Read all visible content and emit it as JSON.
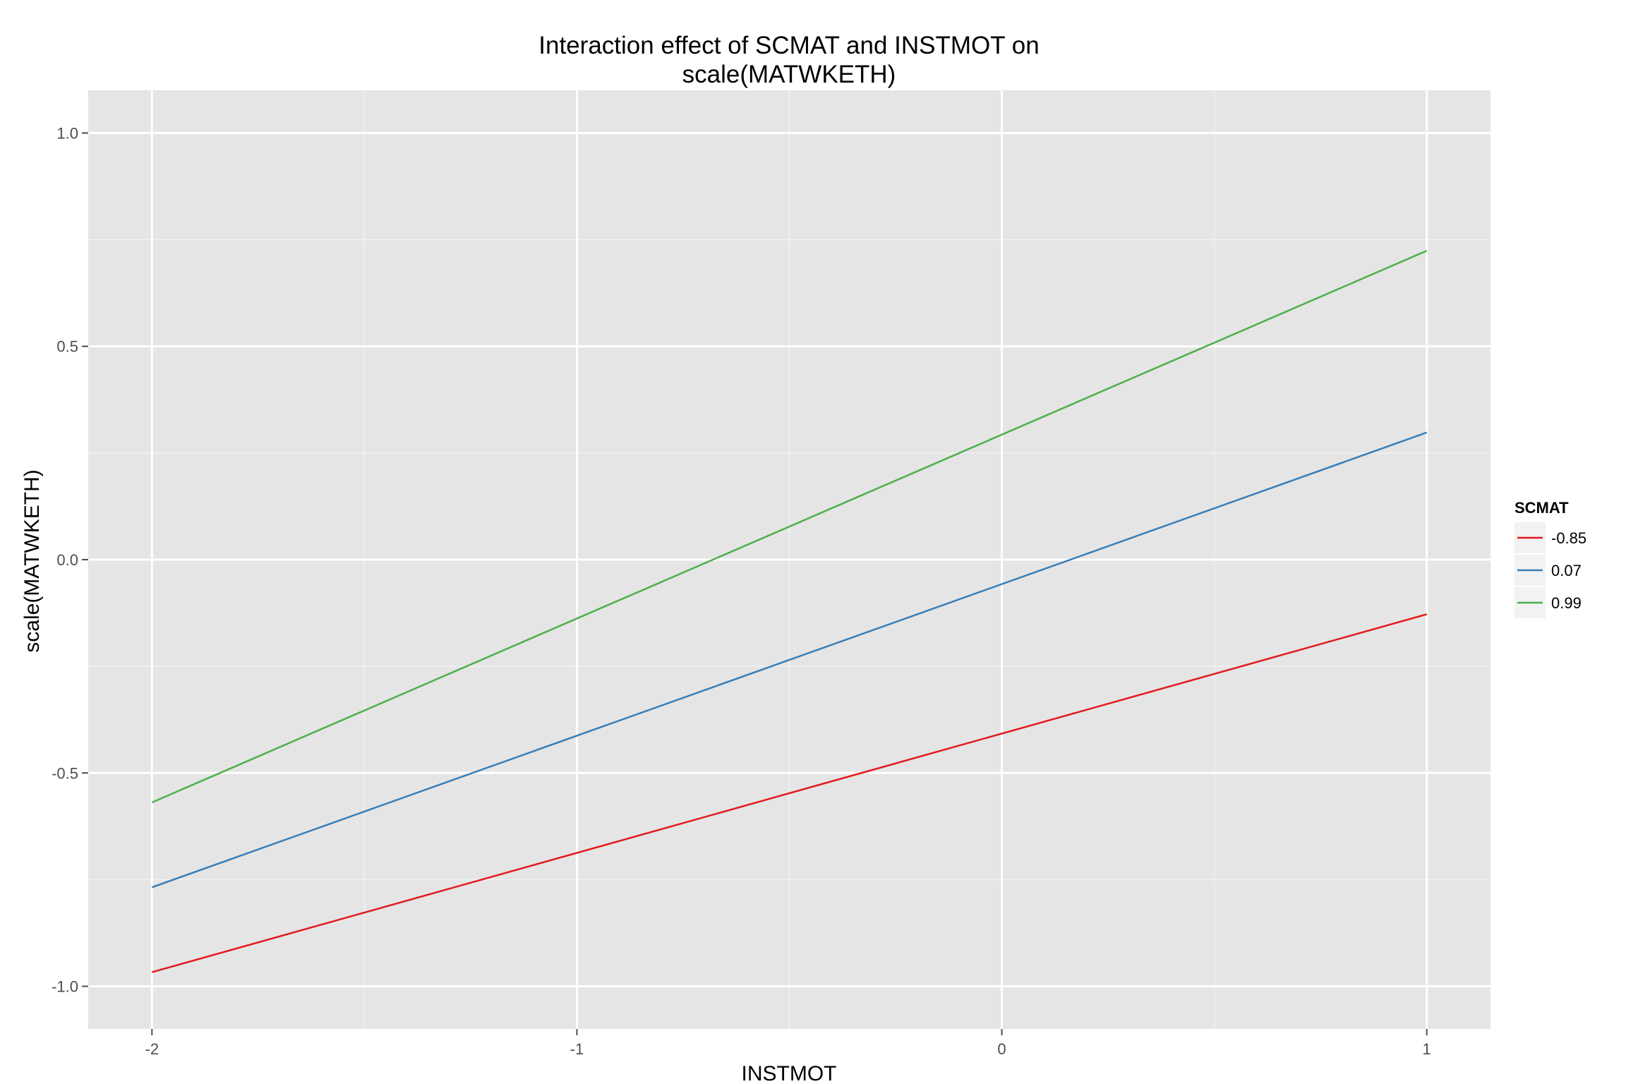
{
  "chart_data": {
    "type": "line",
    "title": "Interaction effect of SCMAT and INSTMOT on",
    "title_line2": "scale(MATWKETH)",
    "xlabel": "INSTMOT",
    "ylabel": "scale(MATWKETH)",
    "xlim": [
      -2.15,
      1.15
    ],
    "ylim": [
      -1.1,
      1.1
    ],
    "xticks": [
      "-2",
      "-1",
      "0",
      "1"
    ],
    "yticks": [
      "-1.0",
      "-0.5",
      "0.0",
      "0.5",
      "1.0"
    ],
    "xtick_values": [
      -2,
      -1,
      0,
      1
    ],
    "ytick_values": [
      -1.0,
      -0.5,
      0.0,
      0.5,
      1.0
    ],
    "grid": true,
    "legend": {
      "title": "SCMAT",
      "position": "right"
    },
    "x": [
      -2,
      1
    ],
    "series": [
      {
        "name": "-0.85",
        "color": "#E41A1C",
        "values": [
          -0.967,
          -0.128
        ]
      },
      {
        "name": "0.07",
        "color": "#377EB8",
        "values": [
          -0.768,
          0.298
        ]
      },
      {
        "name": "0.99",
        "color": "#4DAF4A",
        "values": [
          -0.569,
          0.724
        ]
      }
    ]
  },
  "colors": {
    "panel_background": "#E5E5E5",
    "grid_major": "#FFFFFF",
    "grid_minor": "#F2F2F2"
  }
}
